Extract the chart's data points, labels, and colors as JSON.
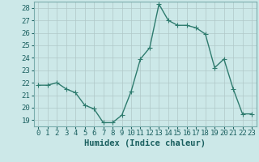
{
  "x": [
    0,
    1,
    2,
    3,
    4,
    5,
    6,
    7,
    8,
    9,
    10,
    11,
    12,
    13,
    14,
    15,
    16,
    17,
    18,
    19,
    20,
    21,
    22,
    23
  ],
  "y": [
    21.8,
    21.8,
    22.0,
    21.5,
    21.2,
    20.2,
    19.9,
    18.8,
    18.8,
    19.4,
    21.3,
    23.9,
    24.8,
    28.3,
    27.0,
    26.6,
    26.6,
    26.4,
    25.9,
    23.2,
    23.9,
    21.5,
    19.5,
    19.5
  ],
  "line_color": "#2e7b6e",
  "marker": "+",
  "marker_size": 4,
  "bg_color": "#cce8e8",
  "grid_color": "#b0c8c8",
  "xlabel": "Humidex (Indice chaleur)",
  "xlim": [
    -0.5,
    23.5
  ],
  "ylim": [
    18.5,
    28.5
  ],
  "yticks": [
    19,
    20,
    21,
    22,
    23,
    24,
    25,
    26,
    27,
    28
  ],
  "xticks": [
    0,
    1,
    2,
    3,
    4,
    5,
    6,
    7,
    8,
    9,
    10,
    11,
    12,
    13,
    14,
    15,
    16,
    17,
    18,
    19,
    20,
    21,
    22,
    23
  ],
  "xlabel_fontsize": 7.5,
  "ylabel_fontsize": 7,
  "tick_fontsize": 6.5,
  "line_width": 1.0,
  "grid_linewidth": 0.5,
  "spine_color": "#7aadad"
}
